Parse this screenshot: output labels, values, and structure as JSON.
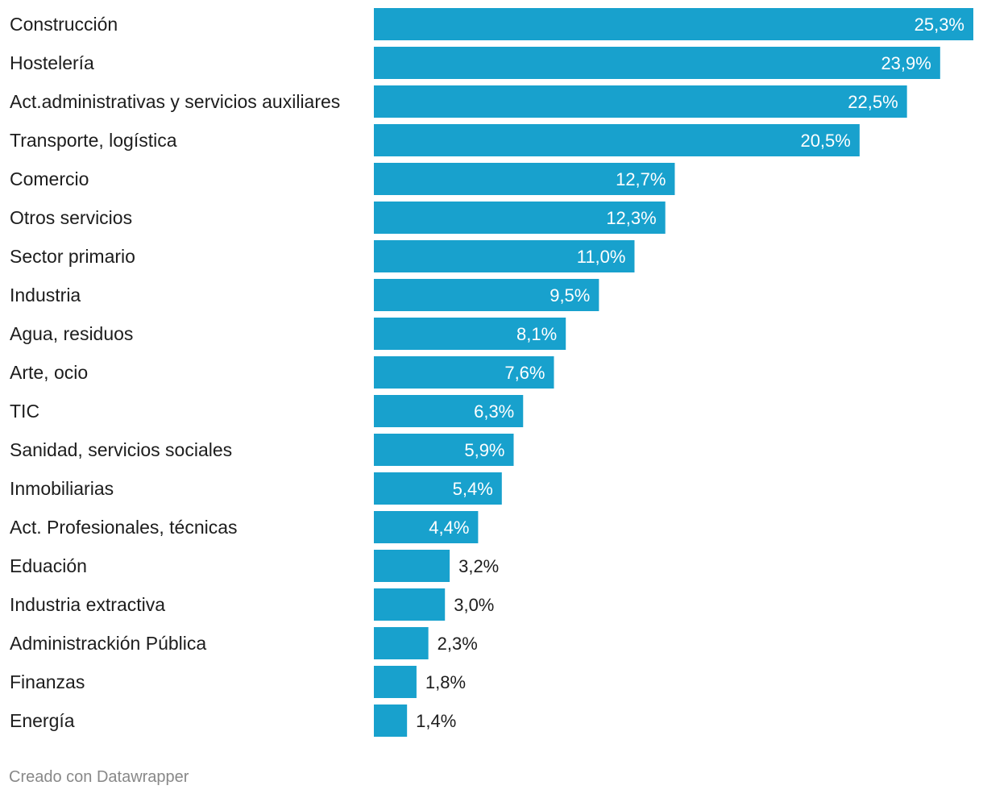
{
  "chart_data": {
    "type": "bar",
    "orientation": "horizontal",
    "title": "",
    "xlabel": "",
    "ylabel": "",
    "grid": false,
    "legend": "none",
    "xlim": [
      0,
      25.3
    ],
    "bar_color": "#18a1cd",
    "inside_label_color": "#ffffff",
    "outside_label_color": "#1d1d1d",
    "categories": [
      "Construcción",
      "Hostelería",
      "Act.administrativas y servicios auxiliares",
      "Transporte, logística",
      "Comercio",
      "Otros servicios",
      "Sector primario",
      "Industria",
      "Agua, residuos",
      "Arte, ocio",
      "TIC",
      "Sanidad, servicios sociales",
      "Inmobiliarias",
      "Act. Profesionales, técnicas",
      "Eduación",
      "Industria extractiva",
      "Administrackión Pública",
      "Finanzas",
      "Energía"
    ],
    "values": [
      25.3,
      23.9,
      22.5,
      20.5,
      12.7,
      12.3,
      11.0,
      9.5,
      8.1,
      7.6,
      6.3,
      5.9,
      5.4,
      4.4,
      3.2,
      3.0,
      2.3,
      1.8,
      1.4
    ],
    "value_labels": [
      "25,3%",
      "23,9%",
      "22,5%",
      "20,5%",
      "12,7%",
      "12,3%",
      "11,0%",
      "9,5%",
      "8,1%",
      "7,6%",
      "6,3%",
      "5,9%",
      "5,4%",
      "4,4%",
      "3,2%",
      "3,0%",
      "2,3%",
      "1,8%",
      "1,4%"
    ]
  },
  "footer": {
    "credit": "Creado con Datawrapper"
  }
}
